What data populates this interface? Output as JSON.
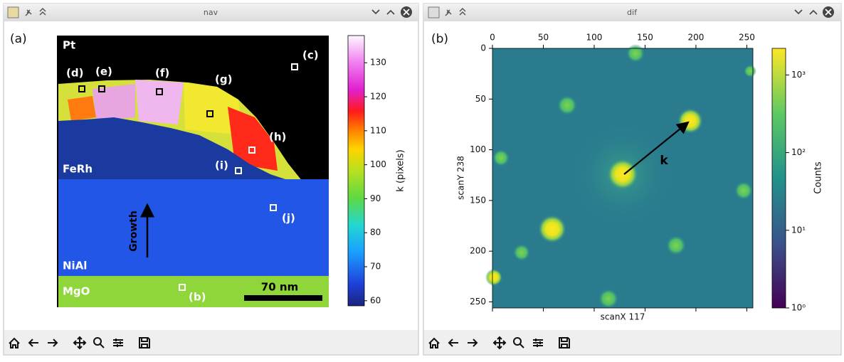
{
  "windows": [
    {
      "title": "nav",
      "panel_label": "(a)",
      "layer_labels": [
        "Pt",
        "FeRh",
        "NiAl",
        "MgO"
      ],
      "point_labels": [
        "(b)",
        "(c)",
        "(d)",
        "(e)",
        "(f)",
        "(g)",
        "(h)",
        "(i)",
        "(j)"
      ],
      "growth_label": "Growth",
      "scale_bar": "70 nm",
      "colorbar": {
        "label": "k (pixels)",
        "lim": [
          58.5,
          138
        ],
        "ticks": [
          60,
          70,
          80,
          90,
          100,
          110,
          120,
          130
        ]
      }
    },
    {
      "title": "dif",
      "panel_label": "(b)",
      "xlabel": "scanX 117",
      "ylabel": "scanY 238",
      "xlim": [
        0,
        256
      ],
      "ylim": [
        256,
        0
      ],
      "xticks": [
        0,
        50,
        100,
        150,
        200,
        250
      ],
      "yticks": [
        0,
        50,
        100,
        150,
        200,
        250
      ],
      "vector_label": "k",
      "colorbar": {
        "label": "Counts",
        "scale": "log",
        "lim": [
          1,
          2200
        ],
        "ticks": [
          {
            "value": 1,
            "label": "10⁰"
          },
          {
            "value": 10,
            "label": "10¹"
          },
          {
            "value": 100,
            "label": "10²"
          },
          {
            "value": 1000,
            "label": "10³"
          }
        ]
      }
    }
  ]
}
